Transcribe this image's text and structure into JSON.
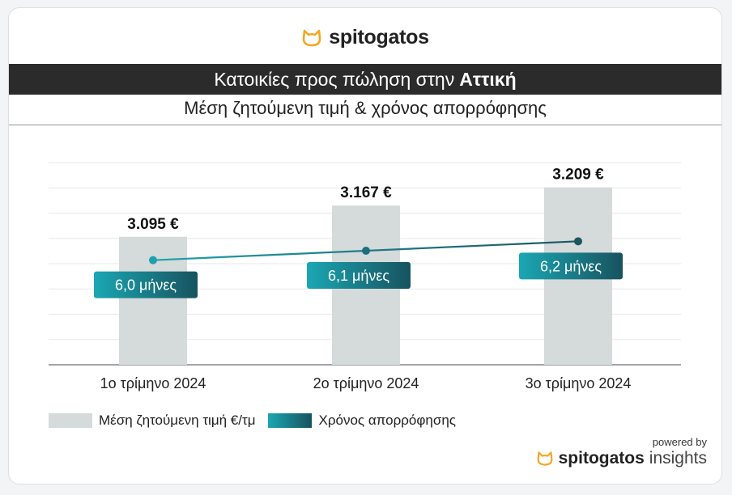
{
  "brand": {
    "name": "spitogatos",
    "accent": "#f5a623",
    "powered_by": "powered by",
    "insights": "insights",
    "logo_icon": "cat-head-icon"
  },
  "title": {
    "prefix": "Κατοικίες προς πώληση στην",
    "highlight": "Αττική"
  },
  "subtitle": "Μέση ζητούμενη τιμή & χρόνος απορρόφησης",
  "legend": {
    "price": "Μέση ζητούμενη τιμή €/τμ",
    "absorption": "Χρόνος απορρόφησης"
  },
  "colors": {
    "bar": "#d5dadb",
    "line": "#1f8a94",
    "badge_start": "#1aa7b3",
    "badge_end": "#17535f",
    "title_bg": "#2b2b2b"
  },
  "chart_data": {
    "type": "bar",
    "categories": [
      "1ο τρίμηνο 2024",
      "2ο τρίμηνο 2024",
      "3ο τρίμηνο 2024"
    ],
    "series": [
      {
        "name": "Μέση ζητούμενη τιμή €/τμ",
        "type": "bar",
        "values": [
          3095,
          3167,
          3209
        ],
        "labels": [
          "3.095 €",
          "3.167 €",
          "3.209 €"
        ]
      },
      {
        "name": "Χρόνος απορρόφησης",
        "type": "line",
        "values": [
          6.0,
          6.1,
          6.2
        ],
        "labels": [
          "6,0 μήνες",
          "6,1 μήνες",
          "6,2 μήνες"
        ]
      }
    ],
    "legend_position": "bottom-left",
    "grid": true
  }
}
